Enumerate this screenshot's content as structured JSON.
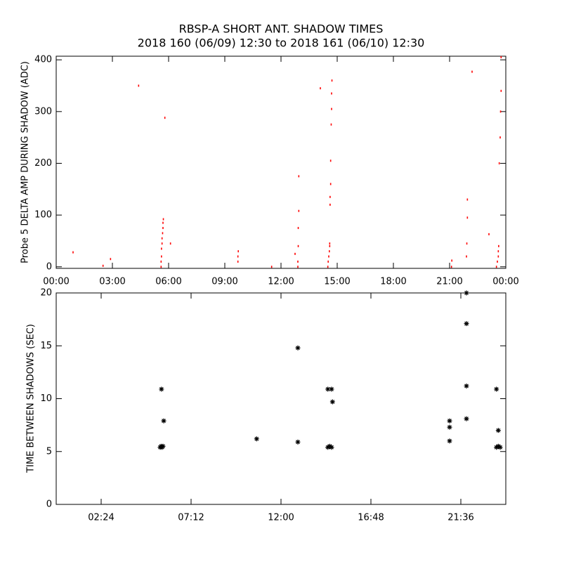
{
  "chart_data": [
    {
      "type": "scatter",
      "title": "RBSP-A SHORT ANT. SHADOW TIMES",
      "subtitle": "2018 160 (06/09) 12:30 to 2018 161 (06/10) 12:30",
      "y_label": "Probe 5 DELTA AMP DURING SHADOW (ADC)",
      "color": "#ff0000",
      "marker": "dot",
      "x": [
        0.9,
        2.5,
        2.9,
        4.4,
        5.6,
        5.6,
        5.62,
        5.62,
        5.65,
        5.65,
        5.68,
        5.7,
        5.7,
        5.72,
        5.8,
        6.1,
        9.7,
        9.7,
        9.72,
        11.5,
        12.75,
        12.9,
        12.9,
        12.92,
        12.92,
        12.95,
        12.95,
        14.1,
        14.5,
        14.52,
        14.55,
        14.58,
        14.6,
        14.6,
        14.62,
        14.62,
        14.65,
        14.65,
        14.68,
        14.7,
        14.7,
        14.72,
        21.1,
        21.12,
        21.9,
        21.92,
        21.95,
        21.95,
        22.2,
        23.1,
        23.5,
        23.55,
        23.6,
        23.6,
        23.62,
        23.65,
        23.7,
        23.72,
        23.75,
        23.75
      ],
      "values": [
        28,
        2,
        15,
        350,
        0,
        10,
        20,
        35,
        45,
        55,
        65,
        75,
        85,
        92,
        288,
        45,
        10,
        20,
        30,
        0,
        25,
        0,
        10,
        40,
        75,
        108,
        175,
        345,
        0,
        10,
        20,
        30,
        40,
        45,
        120,
        135,
        160,
        205,
        275,
        305,
        335,
        360,
        0,
        12,
        20,
        45,
        95,
        130,
        377,
        63,
        0,
        10,
        20,
        30,
        40,
        200,
        250,
        300,
        340,
        405
      ],
      "xlim": [
        0,
        24
      ],
      "ylim": [
        -3,
        407
      ],
      "xticks": [
        {
          "value": 0,
          "label": "00:00"
        },
        {
          "value": 3,
          "label": "03:00"
        },
        {
          "value": 6,
          "label": "06:00"
        },
        {
          "value": 9,
          "label": "09:00"
        },
        {
          "value": 12,
          "label": "12:00"
        },
        {
          "value": 15,
          "label": "15:00"
        },
        {
          "value": 18,
          "label": "18:00"
        },
        {
          "value": 21,
          "label": "21:00"
        },
        {
          "value": 24,
          "label": "00:00"
        }
      ],
      "yticks": [
        0,
        100,
        200,
        300,
        400
      ]
    },
    {
      "type": "scatter",
      "y_label": "TIME BETWEEN SHADOWS (SEC)",
      "color": "#000000",
      "marker": "star",
      "x": [
        5.62,
        5.74,
        5.55,
        5.6,
        5.65,
        5.7,
        10.7,
        12.9,
        12.9,
        14.5,
        14.7,
        14.75,
        14.5,
        14.6,
        14.7,
        21.0,
        21.0,
        21.0,
        21.9,
        21.9,
        21.9,
        21.9,
        23.5,
        23.6,
        23.5,
        23.6,
        23.7
      ],
      "values": [
        10.9,
        7.9,
        5.4,
        5.5,
        5.4,
        5.5,
        6.2,
        14.8,
        5.9,
        10.9,
        10.9,
        9.7,
        5.4,
        5.5,
        5.4,
        7.9,
        7.3,
        6.0,
        20,
        17.1,
        11.2,
        8.1,
        10.9,
        7.0,
        5.4,
        5.5,
        5.4
      ],
      "xlim": [
        0,
        24
      ],
      "ylim": [
        0,
        20
      ],
      "xticks": [
        {
          "value": 2.4,
          "label": "02:24"
        },
        {
          "value": 7.2,
          "label": "07:12"
        },
        {
          "value": 12,
          "label": "12:00"
        },
        {
          "value": 16.8,
          "label": "16:48"
        },
        {
          "value": 21.6,
          "label": "21:36"
        }
      ],
      "yticks": [
        0,
        5,
        10,
        15,
        20
      ]
    }
  ]
}
